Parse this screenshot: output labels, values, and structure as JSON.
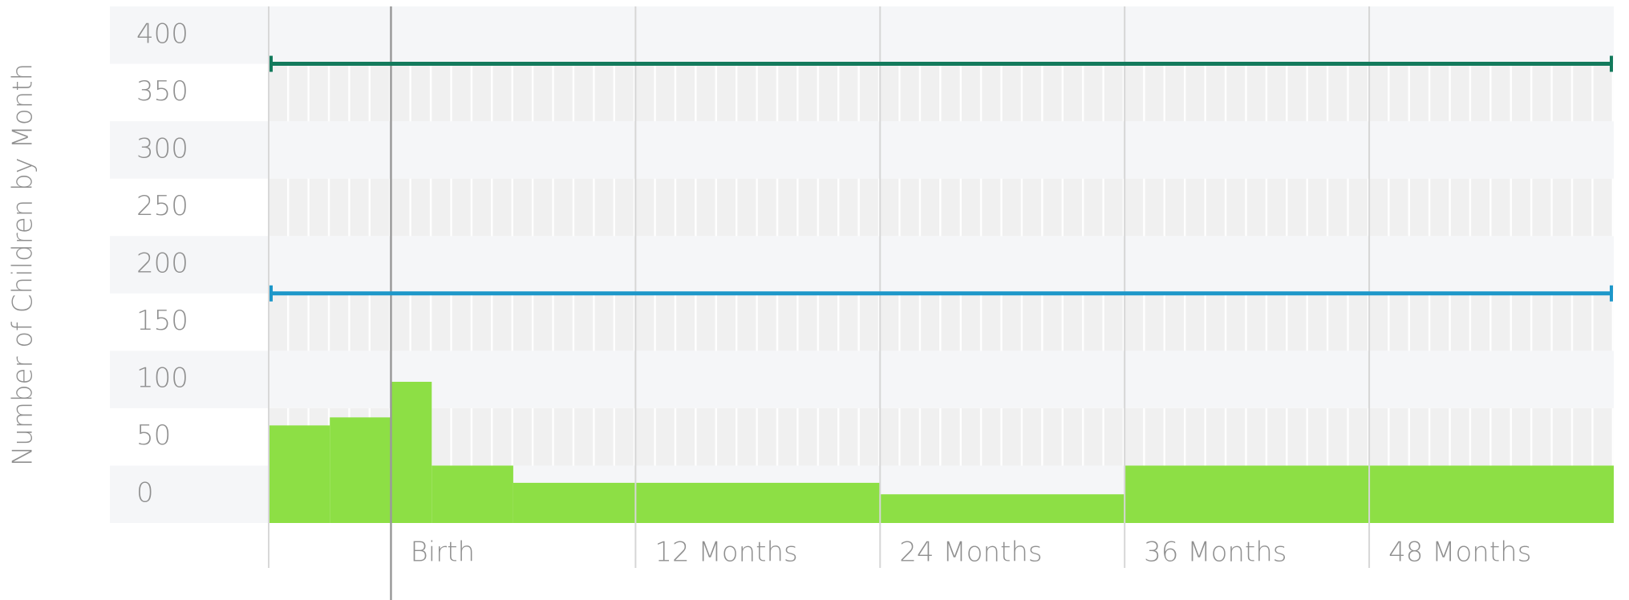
{
  "chart_data": {
    "type": "histogram",
    "ylabel": "Number of Children by Month",
    "bins": [
      -6,
      -3,
      0,
      2,
      6,
      24,
      36,
      60
    ],
    "values": [
      60,
      67,
      98,
      25,
      10,
      0,
      25
    ],
    "color": "#8ddf45",
    "xlim": [
      -6,
      60
    ],
    "xticks": [
      {
        "value": 0,
        "label": "Birth"
      },
      {
        "value": 12,
        "label": "12 Months"
      },
      {
        "value": 24,
        "label": "24 Months"
      },
      {
        "value": 36,
        "label": "36 Months"
      },
      {
        "value": 48,
        "label": "48 Months"
      }
    ],
    "ylim": [
      -25,
      425
    ],
    "yticks": [
      0,
      50,
      100,
      150,
      200,
      250,
      300,
      350,
      400
    ],
    "reference_lines": [
      {
        "value": 375,
        "color": "#137a5c"
      },
      {
        "value": 175,
        "color": "#1d97c9"
      }
    ]
  }
}
